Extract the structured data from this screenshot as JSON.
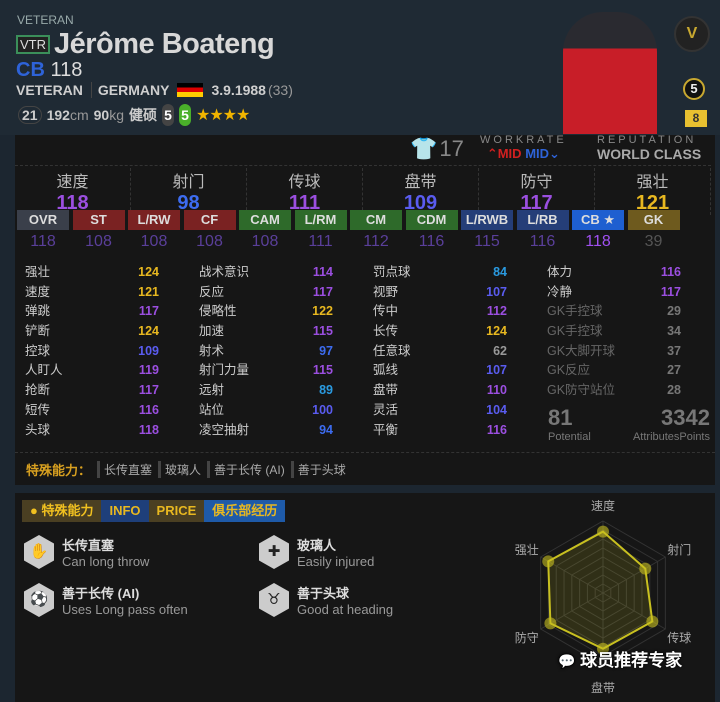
{
  "player": {
    "tier_label": "VETERAN",
    "badge": "VTR",
    "name": "Jérôme Boateng",
    "position": "CB",
    "ovr": "118",
    "season": "VETERAN",
    "nation": "GERMANY",
    "birthdate": "3.9.1988",
    "age": "(33)",
    "weak_foot_num": "21",
    "height": "192",
    "height_unit": "cm",
    "weight": "90",
    "weight_unit": "kg",
    "body_type": "健硕",
    "skill_left": "5",
    "skill_right": "5",
    "stars": 4,
    "rank_badge": "5",
    "level_badge": "8",
    "shirt_number": "17"
  },
  "workrate": {
    "label": "WORKRATE",
    "attack": "MID",
    "defense": "MID"
  },
  "reputation": {
    "label": "REPUTATION",
    "value": "WORLD CLASS"
  },
  "categories": [
    {
      "label": "速度",
      "value": "118",
      "color": "#9b4fe0"
    },
    {
      "label": "射门",
      "value": "98",
      "color": "#3d6cf0"
    },
    {
      "label": "传球",
      "value": "111",
      "color": "#9b4fe0"
    },
    {
      "label": "盘带",
      "value": "109",
      "color": "#5a5cf0"
    },
    {
      "label": "防守",
      "value": "117",
      "color": "#9b4fe0"
    },
    {
      "label": "强壮",
      "value": "121",
      "color": "#e8b820"
    }
  ],
  "positions": [
    {
      "label": "OVR",
      "value": "118",
      "bg": "#3a3f4a"
    },
    {
      "label": "ST",
      "value": "108",
      "bg": "#7a2222"
    },
    {
      "label": "L/RW",
      "value": "108",
      "bg": "#7a2222"
    },
    {
      "label": "CF",
      "value": "108",
      "bg": "#7a2222"
    },
    {
      "label": "CAM",
      "value": "108",
      "bg": "#2e6a2a"
    },
    {
      "label": "L/RM",
      "value": "111",
      "bg": "#2e6a2a"
    },
    {
      "label": "CM",
      "value": "112",
      "bg": "#2e6a2a"
    },
    {
      "label": "CDM",
      "value": "116",
      "bg": "#2e6a2a"
    },
    {
      "label": "L/RWB",
      "value": "115",
      "bg": "#253e78"
    },
    {
      "label": "L/RB",
      "value": "116",
      "bg": "#253e78"
    },
    {
      "label": "CB ★",
      "value": "118",
      "bg": "#1e5fd0"
    },
    {
      "label": "GK",
      "value": "39",
      "bg": "#6e5a1e"
    }
  ],
  "attributes": [
    [
      {
        "l": "强壮",
        "v": "124",
        "c": "#e8b820"
      },
      {
        "l": "速度",
        "v": "121",
        "c": "#e8b820"
      },
      {
        "l": "弹跳",
        "v": "117",
        "c": "#9b4fe0"
      },
      {
        "l": "铲断",
        "v": "124",
        "c": "#e8b820"
      },
      {
        "l": "控球",
        "v": "109",
        "c": "#5a5cf0"
      },
      {
        "l": "人盯人",
        "v": "119",
        "c": "#9b4fe0"
      },
      {
        "l": "抢断",
        "v": "117",
        "c": "#9b4fe0"
      },
      {
        "l": "短传",
        "v": "116",
        "c": "#9b4fe0"
      },
      {
        "l": "头球",
        "v": "118",
        "c": "#9b4fe0"
      }
    ],
    [
      {
        "l": "战术意识",
        "v": "114",
        "c": "#9b4fe0"
      },
      {
        "l": "反应",
        "v": "117",
        "c": "#9b4fe0"
      },
      {
        "l": "侵略性",
        "v": "122",
        "c": "#e8b820"
      },
      {
        "l": "加速",
        "v": "115",
        "c": "#9b4fe0"
      },
      {
        "l": "射术",
        "v": "97",
        "c": "#3d6cf0"
      },
      {
        "l": "射门力量",
        "v": "115",
        "c": "#9b4fe0"
      },
      {
        "l": "远射",
        "v": "89",
        "c": "#2a9ae0"
      },
      {
        "l": "站位",
        "v": "100",
        "c": "#5a5cf0"
      },
      {
        "l": "凌空抽射",
        "v": "94",
        "c": "#3d6cf0"
      }
    ],
    [
      {
        "l": "罚点球",
        "v": "84",
        "c": "#2a9ae0"
      },
      {
        "l": "视野",
        "v": "107",
        "c": "#5a5cf0"
      },
      {
        "l": "传中",
        "v": "112",
        "c": "#9b4fe0"
      },
      {
        "l": "长传",
        "v": "124",
        "c": "#e8b820"
      },
      {
        "l": "任意球",
        "v": "62",
        "c": "#999"
      },
      {
        "l": "弧线",
        "v": "107",
        "c": "#5a5cf0"
      },
      {
        "l": "盘带",
        "v": "110",
        "c": "#9b4fe0"
      },
      {
        "l": "灵活",
        "v": "104",
        "c": "#5a5cf0"
      },
      {
        "l": "平衡",
        "v": "116",
        "c": "#9b4fe0"
      }
    ],
    [
      {
        "l": "体力",
        "v": "116",
        "c": "#9b4fe0"
      },
      {
        "l": "冷静",
        "v": "117",
        "c": "#9b4fe0"
      },
      {
        "l": "GK手控球",
        "v": "29",
        "c": "#777"
      },
      {
        "l": "GK手控球",
        "v": "34",
        "c": "#777"
      },
      {
        "l": "GK大脚开球",
        "v": "37",
        "c": "#777"
      },
      {
        "l": "GK反应",
        "v": "27",
        "c": "#777"
      },
      {
        "l": "GK防守站位",
        "v": "28",
        "c": "#777"
      }
    ]
  ],
  "potential": {
    "value": "81",
    "label": "Potential"
  },
  "attr_points": {
    "value": "3342",
    "label": "AttributesPoints"
  },
  "traits_bar": {
    "label": "特殊能力：",
    "items": [
      "长传直塞",
      "玻璃人",
      "善于长传 (AI)",
      "善于头球"
    ]
  },
  "tabs": [
    {
      "label": "特殊能力",
      "bg": "#4a3f22",
      "color": "#f0c020"
    },
    {
      "label": "INFO",
      "bg": "#1e3f7a",
      "color": "#e8b820"
    },
    {
      "label": "PRICE",
      "bg": "#4a3f22",
      "color": "#e8b820"
    },
    {
      "label": "俱乐部经历",
      "bg": "#1e5aa8",
      "color": "#e8b820"
    }
  ],
  "traits": [
    {
      "name": "长传直塞",
      "desc": "Can long throw",
      "icon": "long-throw"
    },
    {
      "name": "玻璃人",
      "desc": "Easily injured",
      "icon": "ambulance"
    },
    {
      "name": "善于长传 (AI)",
      "desc": "Uses Long pass often",
      "icon": "long-pass"
    },
    {
      "name": "善于头球",
      "desc": "Good at heading",
      "icon": "bull"
    }
  ],
  "radar": {
    "labels": [
      "速度",
      "射门",
      "传球",
      "盘带",
      "防守",
      "强壮"
    ],
    "values": [
      118,
      98,
      111,
      109,
      117,
      121
    ],
    "color": "#c8c020"
  },
  "watermark": "球员推荐专家"
}
